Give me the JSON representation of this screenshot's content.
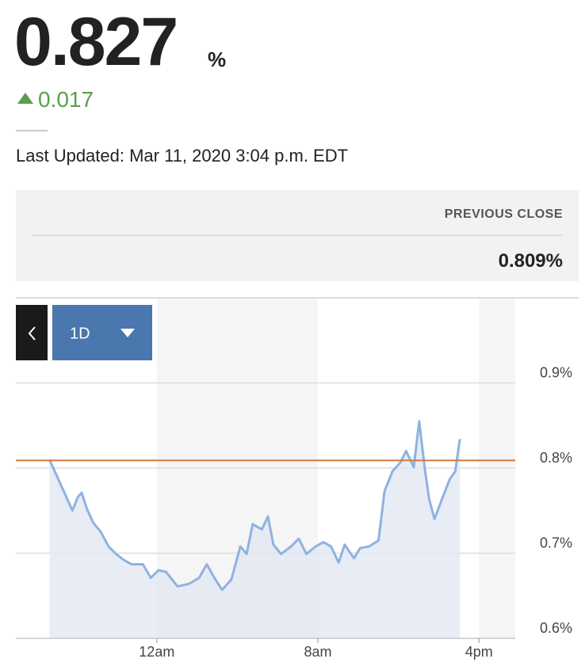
{
  "quote": {
    "price": "0.827",
    "price_unit": "%",
    "change": "0.017",
    "last_updated": "Last Updated: Mar 11, 2020 3:04 p.m. EDT",
    "previous_close_label": "PREVIOUS CLOSE",
    "previous_close": "0.809%"
  },
  "controls": {
    "range": "1D"
  },
  "chart_data": {
    "type": "line",
    "color": "#8fb2e0",
    "area_color": "#e2e9f2",
    "reference_line": 0.809,
    "reference_color": "#d4773c",
    "shaded_ranges": [
      [
        0,
        8
      ],
      [
        16,
        17.8
      ]
    ],
    "xlim": [
      -7,
      17.8
    ],
    "ylim": [
      0.6,
      1.0
    ],
    "grid": true,
    "xticks": [
      {
        "value": 0,
        "label": "12am"
      },
      {
        "value": 8,
        "label": "8am"
      },
      {
        "value": 16,
        "label": "4pm"
      }
    ],
    "yticks": [
      {
        "value": 0.6,
        "label": "0.6%"
      },
      {
        "value": 0.7,
        "label": "0.7%"
      },
      {
        "value": 0.8,
        "label": "0.8%"
      },
      {
        "value": 0.9,
        "label": "0.9%"
      }
    ],
    "x": [
      -5.33,
      -4.19,
      -3.92,
      -3.73,
      -3.47,
      -3.16,
      -2.78,
      -2.4,
      -2.02,
      -1.64,
      -1.26,
      -0.69,
      -0.3,
      0.08,
      0.46,
      1.03,
      1.6,
      2.1,
      2.48,
      2.86,
      3.24,
      3.7,
      4.15,
      4.46,
      4.76,
      5.22,
      5.52,
      5.79,
      6.17,
      6.67,
      7.05,
      7.43,
      7.89,
      8.27,
      8.65,
      9.03,
      9.33,
      9.79,
      10.1,
      10.55,
      11.01,
      11.31,
      11.7,
      12.08,
      12.38,
      12.76,
      13.03,
      13.3,
      13.52,
      13.79,
      14.17,
      14.55,
      14.82,
      15.05
    ],
    "values": [
      0.81,
      0.75,
      0.766,
      0.771,
      0.752,
      0.736,
      0.725,
      0.708,
      0.699,
      0.692,
      0.687,
      0.687,
      0.671,
      0.68,
      0.678,
      0.661,
      0.664,
      0.671,
      0.687,
      0.671,
      0.657,
      0.669,
      0.708,
      0.699,
      0.734,
      0.728,
      0.743,
      0.71,
      0.699,
      0.708,
      0.717,
      0.699,
      0.708,
      0.713,
      0.708,
      0.689,
      0.71,
      0.694,
      0.706,
      0.708,
      0.715,
      0.773,
      0.796,
      0.806,
      0.82,
      0.801,
      0.855,
      0.801,
      0.764,
      0.74,
      0.764,
      0.787,
      0.796,
      0.834
    ]
  }
}
